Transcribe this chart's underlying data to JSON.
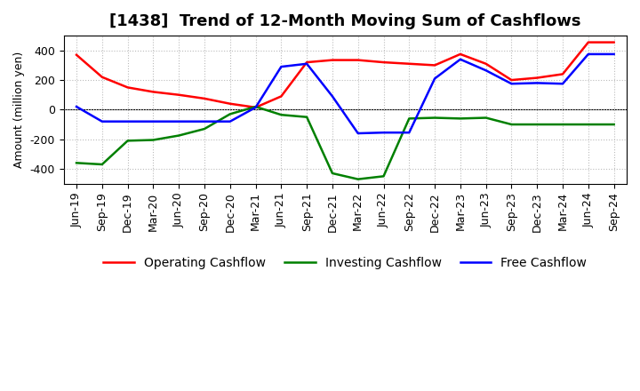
{
  "title": "[1438]  Trend of 12-Month Moving Sum of Cashflows",
  "ylabel": "Amount (million yen)",
  "x_labels": [
    "Jun-19",
    "Sep-19",
    "Dec-19",
    "Mar-20",
    "Jun-20",
    "Sep-20",
    "Dec-20",
    "Mar-21",
    "Jun-21",
    "Sep-21",
    "Dec-21",
    "Mar-22",
    "Jun-22",
    "Sep-22",
    "Dec-22",
    "Mar-23",
    "Jun-23",
    "Sep-23",
    "Dec-23",
    "Mar-24",
    "Jun-24",
    "Sep-24"
  ],
  "operating_cashflow": [
    370,
    220,
    150,
    120,
    100,
    75,
    40,
    15,
    90,
    320,
    335,
    335,
    320,
    310,
    300,
    375,
    310,
    200,
    215,
    240,
    455,
    455
  ],
  "investing_cashflow": [
    -360,
    -370,
    -210,
    -205,
    -175,
    -130,
    -30,
    20,
    -35,
    -50,
    -430,
    -470,
    -450,
    -60,
    -55,
    -60,
    -55,
    -100,
    -100,
    -100,
    -100,
    -100
  ],
  "free_cashflow": [
    20,
    -80,
    -80,
    -80,
    -80,
    -80,
    -80,
    15,
    290,
    310,
    90,
    -160,
    -155,
    -155,
    210,
    340,
    265,
    175,
    180,
    175,
    375,
    375
  ],
  "ylim": [
    -500,
    500
  ],
  "yticks": [
    -400,
    -200,
    0,
    200,
    400
  ],
  "operating_color": "#ff0000",
  "investing_color": "#008000",
  "free_color": "#0000ff",
  "background_color": "#ffffff",
  "grid_color": "#aaaaaa",
  "title_fontsize": 13,
  "axis_fontsize": 9,
  "legend_fontsize": 10,
  "line_width": 1.8
}
